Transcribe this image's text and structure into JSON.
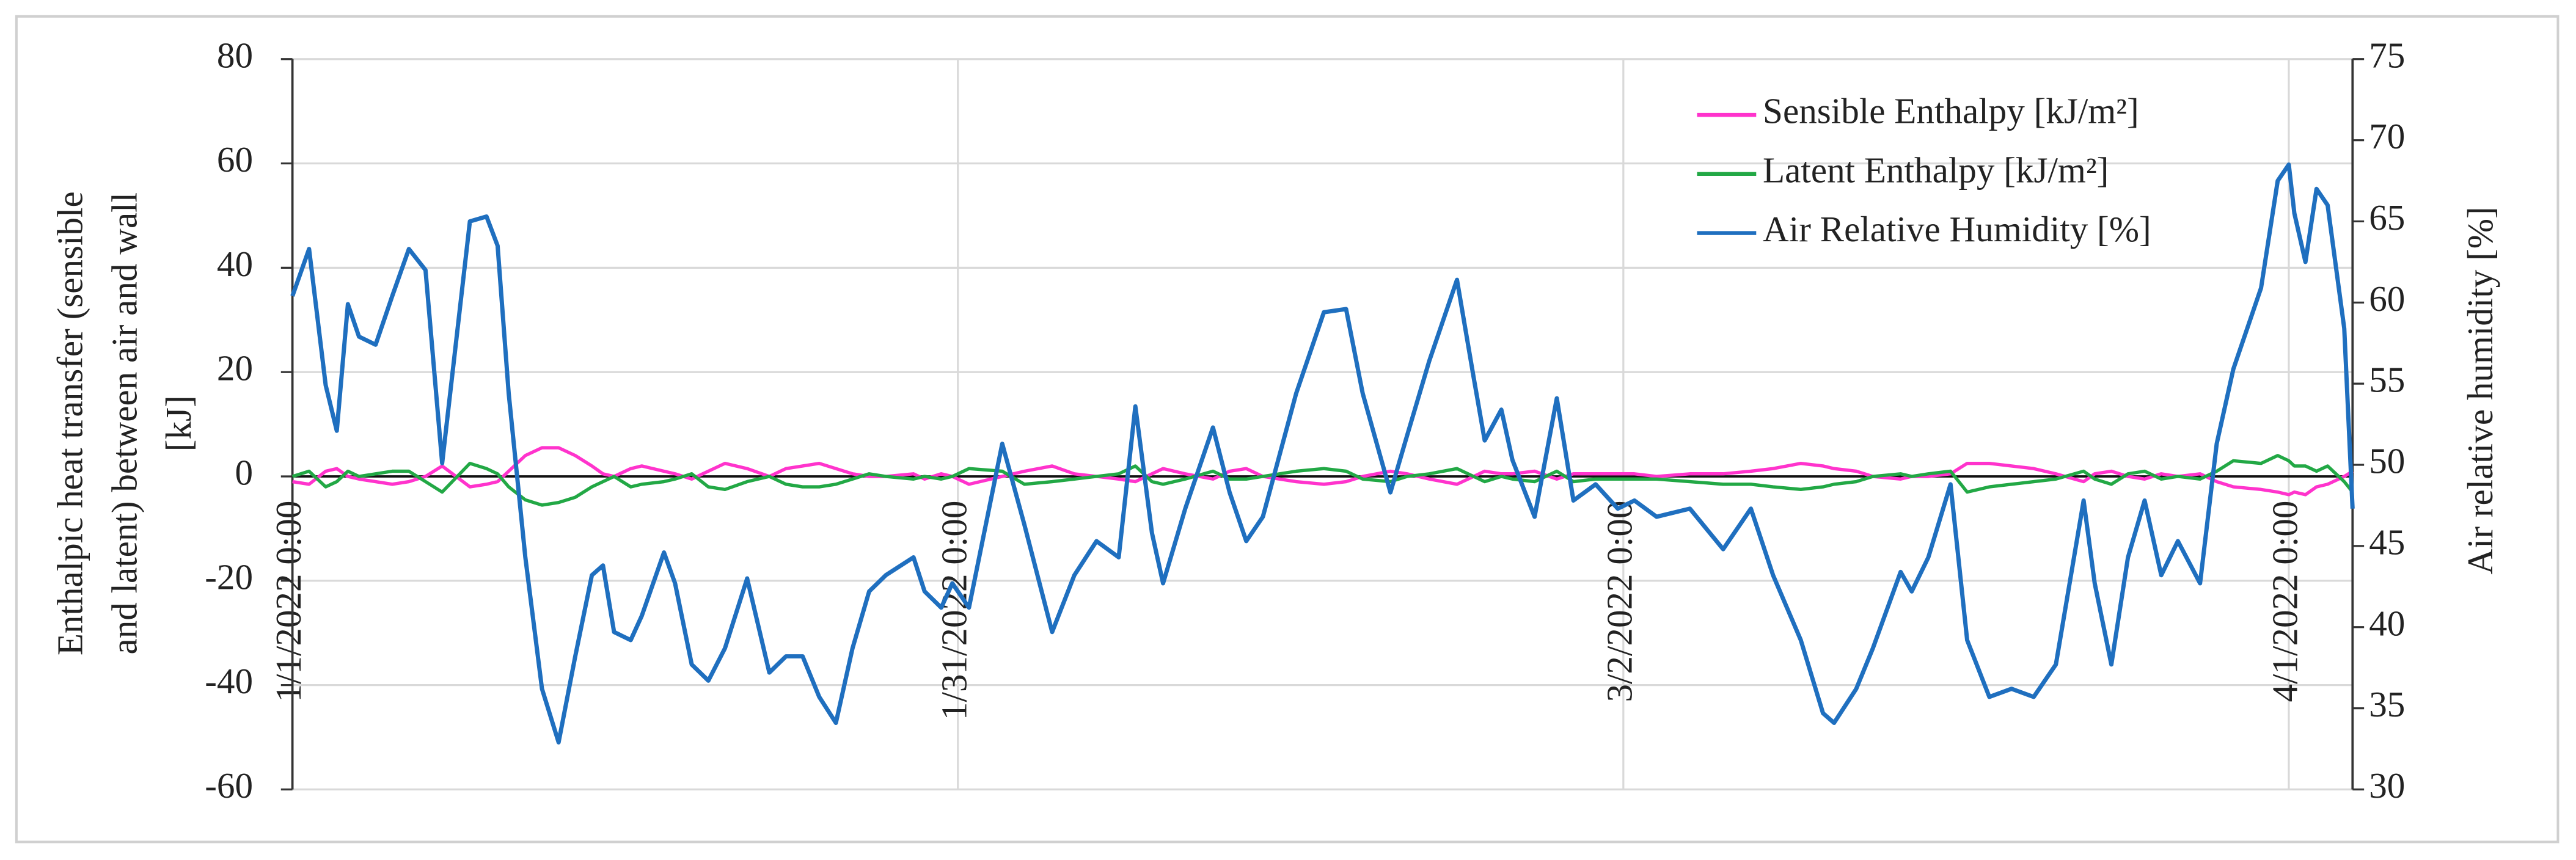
{
  "chart_data": {
    "type": "line",
    "ylabel": [
      "Enthalpic heat transfer (sensible",
      "and latent) between air and wall",
      "[kJ]"
    ],
    "y2label": "Air relative humidity [%]",
    "x": [
      "1/1/2022 0:00",
      "1/1/2022 18:00",
      "1/2/2022 12:00",
      "1/3/2022 0:00",
      "1/3/2022 12:00",
      "1/4/2022 0:00",
      "1/4/2022 18:00",
      "1/5/2022 12:00",
      "1/6/2022 6:00",
      "1/7/2022 0:00",
      "1/7/2022 18:00",
      "1/9/2022 0:00",
      "1/9/2022 18:00",
      "1/10/2022 6:00",
      "1/10/2022 18:00",
      "1/11/2022 12:00",
      "1/12/2022 6:00",
      "1/13/2022 0:00",
      "1/13/2022 18:00",
      "1/14/2022 12:00",
      "1/15/2022 0:00",
      "1/15/2022 12:00",
      "1/16/2022 6:00",
      "1/16/2022 18:00",
      "1/17/2022 18:00",
      "1/18/2022 6:00",
      "1/19/2022 0:00",
      "1/19/2022 18:00",
      "1/20/2022 12:00",
      "1/21/2022 12:00",
      "1/22/2022 12:00",
      "1/23/2022 6:00",
      "1/24/2022 0:00",
      "1/24/2022 18:00",
      "1/25/2022 12:00",
      "1/26/2022 6:00",
      "1/27/2022 0:00",
      "1/27/2022 18:00",
      "1/29/2022 0:00",
      "1/29/2022 12:00",
      "1/30/2022 6:00",
      "1/30/2022 18:00",
      "1/31/2022 12:00",
      "2/2/2022 0:00",
      "2/3/2022 0:00",
      "2/4/2022 6:00",
      "2/5/2022 6:00",
      "2/6/2022 6:00",
      "2/7/2022 6:00",
      "2/8/2022 0:00",
      "2/8/2022 18:00",
      "2/9/2022 6:00",
      "2/10/2022 6:00",
      "2/11/2022 12:00",
      "2/12/2022 6:00",
      "2/13/2022 0:00",
      "2/13/2022 18:00",
      "2/15/2022 6:00",
      "2/16/2022 12:00",
      "2/17/2022 12:00",
      "2/18/2022 6:00",
      "2/19/2022 12:00",
      "2/20/2022 6:00",
      "2/21/2022 6:00",
      "2/22/2022 12:00",
      "2/23/2022 6:00",
      "2/23/2022 18:00",
      "2/24/2022 12:00",
      "2/25/2022 0:00",
      "2/26/2022 0:00",
      "2/27/2022 0:00",
      "2/27/2022 18:00",
      "2/28/2022 18:00",
      "3/1/2022 18:00",
      "3/2/2022 12:00",
      "3/3/2022 12:00",
      "3/5/2022 0:00",
      "3/6/2022 12:00",
      "3/7/2022 18:00",
      "3/8/2022 18:00",
      "3/10/2022 0:00",
      "3/11/2022 0:00",
      "3/11/2022 12:00",
      "3/12/2022 12:00",
      "3/13/2022 6:00",
      "3/14/2022 12:00",
      "3/15/2022 0:00",
      "3/15/2022 18:00",
      "3/16/2022 18:00",
      "3/17/2022 12:00",
      "3/18/2022 12:00",
      "3/19/2022 12:00",
      "3/20/2022 12:00",
      "3/21/2022 12:00",
      "3/22/2022 18:00",
      "3/23/2022 6:00",
      "3/24/2022 0:00",
      "3/24/2022 18:00",
      "3/25/2022 12:00",
      "3/26/2022 6:00",
      "3/27/2022 0:00",
      "3/28/2022 0:00",
      "3/28/2022 18:00",
      "3/29/2022 12:00",
      "3/30/2022 18:00",
      "3/31/2022 12:00",
      "4/1/2022 0:00",
      "4/1/2022 6:00",
      "4/1/2022 18:00",
      "4/2/2022 6:00",
      "4/2/2022 18:00",
      "4/3/2022 12:00",
      "4/3/2022 21:00"
    ],
    "xlim": [
      "1/1/2022 0:00",
      "4/3/2022 21:00"
    ],
    "xticks": [
      "1/1/2022 0:00",
      "1/31/2022 0:00",
      "3/2/2022 0:00",
      "4/1/2022 0:00"
    ],
    "ylim": [
      -60,
      80
    ],
    "yticks": [
      -60,
      -40,
      -20,
      0,
      20,
      40,
      60,
      80
    ],
    "y2lim": [
      30,
      75
    ],
    "y2ticks": [
      30,
      35,
      40,
      45,
      50,
      55,
      60,
      65,
      70,
      75
    ],
    "grid": true,
    "legend": "upper right",
    "series": [
      {
        "name": "Sensible Enthalpy [kJ/m²]",
        "color": "#ff33cc",
        "values": [
          -1,
          -1.5,
          1,
          1.5,
          0,
          -0.5,
          -1,
          -1.5,
          -1,
          0,
          2,
          -2,
          -1.5,
          -1,
          1,
          4,
          5.5,
          5.5,
          4,
          2,
          0.5,
          0,
          1.5,
          2,
          1,
          0.5,
          -0.5,
          1,
          2.5,
          1.5,
          0,
          1.5,
          2,
          2.5,
          1.5,
          0.5,
          0,
          0,
          0.5,
          -0.5,
          0.5,
          0,
          -1.5,
          0,
          1,
          2,
          0.5,
          0,
          -0.5,
          -1,
          0.5,
          1.5,
          0.5,
          -0.5,
          1,
          1.5,
          0,
          -1,
          -1.5,
          -1,
          0,
          1,
          0.5,
          -0.5,
          -1.5,
          0,
          1,
          0.5,
          0.5,
          1,
          -0.5,
          0.5,
          0.5,
          0.5,
          0.5,
          0,
          0.5,
          0.5,
          1,
          1.5,
          2.5,
          2,
          1.5,
          1,
          0,
          -0.5,
          0,
          0,
          0.5,
          2.5,
          2.5,
          2,
          1.5,
          0.5,
          -1,
          0.5,
          1,
          0,
          -0.5,
          0.5,
          0,
          0.5,
          -1,
          -2,
          -2.5,
          -3,
          -3.5,
          -3,
          -3.5,
          -2,
          -1.5,
          0,
          1
        ]
      },
      {
        "name": "Latent Enthalpy [kJ/m²]",
        "color": "#22a845",
        "values": [
          0,
          1,
          -2,
          -1,
          1,
          0,
          0.5,
          1,
          1,
          -1,
          -3,
          2.5,
          1.5,
          0.5,
          -2,
          -4.5,
          -5.5,
          -5,
          -4,
          -2,
          -1,
          0,
          -2,
          -1.5,
          -1,
          -0.5,
          0.5,
          -2,
          -2.5,
          -1,
          0,
          -1.5,
          -2,
          -2,
          -1.5,
          -0.5,
          0.5,
          0,
          -0.5,
          0,
          -0.5,
          0,
          1.5,
          1,
          -1.5,
          -1,
          -0.5,
          0,
          0.5,
          2,
          -1,
          -1.5,
          -0.5,
          1,
          -0.5,
          -0.5,
          0,
          1,
          1.5,
          1,
          -0.5,
          -1,
          0,
          0.5,
          1.5,
          0,
          -1,
          0,
          -0.5,
          -1,
          1,
          -1,
          -0.5,
          -0.5,
          -0.5,
          -0.5,
          -1,
          -1.5,
          -1.5,
          -2,
          -2.5,
          -2,
          -1.5,
          -1,
          0,
          0.5,
          0,
          0.5,
          1,
          -3,
          -2,
          -1.5,
          -1,
          -0.5,
          1,
          -0.5,
          -1.5,
          0.5,
          1,
          -0.5,
          0,
          -0.5,
          1,
          3,
          2.5,
          4,
          3,
          2,
          2,
          1,
          2,
          -1,
          -3
        ]
      },
      {
        "name": "Air Relative Humidity [%]",
        "color": "#1f6fbf",
        "axis": "y2",
        "values": [
          60.4,
          63.3,
          54.9,
          52.1,
          59.9,
          57.9,
          57.4,
          60.4,
          63.3,
          62.0,
          50.1,
          65.0,
          65.3,
          63.5,
          54.4,
          44.3,
          36.2,
          32.9,
          38.2,
          43.2,
          43.8,
          39.7,
          39.2,
          40.7,
          44.6,
          42.7,
          37.7,
          36.7,
          38.7,
          43.0,
          37.2,
          38.2,
          38.2,
          35.7,
          34.1,
          38.7,
          42.2,
          43.2,
          44.3,
          42.2,
          41.2,
          42.7,
          41.2,
          51.3,
          46.3,
          39.7,
          43.2,
          45.3,
          44.3,
          53.6,
          45.8,
          42.7,
          47.3,
          52.3,
          48.3,
          45.3,
          46.8,
          54.4,
          59.4,
          59.6,
          54.4,
          48.3,
          51.8,
          56.4,
          61.4,
          55.4,
          51.5,
          53.4,
          50.3,
          46.8,
          54.1,
          47.8,
          48.8,
          47.3,
          47.8,
          46.8,
          47.3,
          44.8,
          47.3,
          43.2,
          39.2,
          34.7,
          34.1,
          36.2,
          38.7,
          43.4,
          42.2,
          44.3,
          48.8,
          39.2,
          35.7,
          36.2,
          35.7,
          37.7,
          47.8,
          42.7,
          37.7,
          44.3,
          47.8,
          43.2,
          45.3,
          42.7,
          51.3,
          55.9,
          60.9,
          67.5,
          68.5,
          65.5,
          62.5,
          67.0,
          66.0,
          58.4,
          47.3
        ]
      }
    ]
  }
}
